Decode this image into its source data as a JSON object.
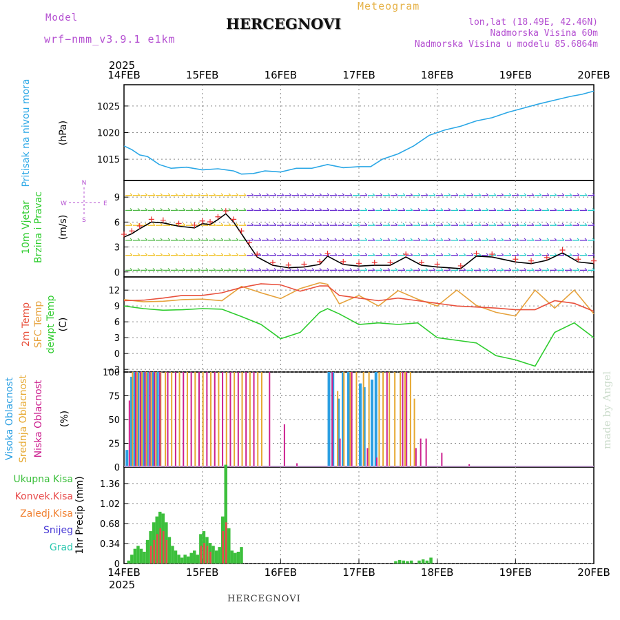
{
  "header": {
    "model_label": "Model",
    "model_name": "wrf−nmm_v3.9.1  e1km",
    "title": "HERCEGNOVI",
    "meteogram_label": "Meteogram",
    "lonlat": "lon,lat (18.49E, 42.46N)",
    "elev": "Nadmorska Visina 60m",
    "elev_model": "Nadmorska Visina u modelu 85.6864m",
    "credit": "made by Angel",
    "footer_title": "HERCEGNOVI"
  },
  "colors": {
    "pressure": "#2aa7e6",
    "temp2m": "#e8503c",
    "sfc": "#e6a23c",
    "dew": "#2ecc2e",
    "high_cloud": "#2b9fe2",
    "mid_cloud": "#e6a830",
    "low_cloud": "#cc1f8e",
    "total_precip": "#3cbf3c",
    "conv_precip": "#e84a4a",
    "frozen": "#f08030",
    "snow": "#4a3cd6",
    "hail": "#2ec8b0",
    "model_purple": "#b44fd1"
  },
  "time_axis": {
    "year": "2025",
    "labels": [
      "14FEB",
      "15FEB",
      "16FEB",
      "17FEB",
      "18FEB",
      "19FEB",
      "20FEB"
    ]
  },
  "panels": {
    "pressure": {
      "label": "Pritisak na nivou mora",
      "unit": "(hPa)"
    },
    "wind": {
      "label1": "10m Vjetar",
      "label2": "Brzina i Pravac",
      "unit": "(m/s)",
      "compass_n": "N",
      "compass_s": "S",
      "compass_w": "W",
      "compass_e": "E"
    },
    "temp": {
      "label1": "2m Temp",
      "label2": "SFC Temp",
      "label3": "dewpt Temp",
      "unit": "(C)"
    },
    "cloud": {
      "label1": "Visoka Oblacnost",
      "label2": "Srednja Oblacnost",
      "label3": "Niska Oblacnost",
      "unit": "(%)"
    },
    "precip": {
      "unit": "1hr Precip (mm)",
      "legend": [
        "Ukupna Kisa",
        "Konvek.Kisa",
        "Zaledj.Kisa",
        "Snijeg",
        "Grad"
      ]
    }
  },
  "chart_data": [
    {
      "type": "line",
      "x_days": [
        0,
        0.1,
        0.2,
        0.3,
        0.45,
        0.6,
        0.8,
        1.0,
        1.2,
        1.4,
        1.5,
        1.65,
        1.8,
        2.0,
        2.2,
        2.4,
        2.6,
        2.8,
        3.0,
        3.15,
        3.3,
        3.5,
        3.7,
        3.9,
        4.1,
        4.3,
        4.5,
        4.7,
        4.9,
        5.1,
        5.3,
        5.5,
        5.7,
        5.85,
        6.0
      ],
      "series": [
        {
          "values": [
            1017.5,
            1016.8,
            1015.8,
            1015.5,
            1014.0,
            1013.3,
            1013.5,
            1013.0,
            1013.2,
            1012.8,
            1012.2,
            1012.3,
            1012.8,
            1012.6,
            1013.3,
            1013.3,
            1014.0,
            1013.4,
            1013.6,
            1013.6,
            1015.0,
            1016.0,
            1017.5,
            1019.5,
            1020.5,
            1021.2,
            1022.2,
            1022.8,
            1023.8,
            1024.6,
            1025.4,
            1026.1,
            1026.8,
            1027.2,
            1027.8
          ]
        }
      ],
      "ylim": [
        1011,
        1029
      ],
      "yticks": [
        1015,
        1020,
        1025
      ]
    },
    {
      "type": "line",
      "x_days": [
        0,
        0.1,
        0.2,
        0.35,
        0.5,
        0.7,
        0.9,
        1.0,
        1.1,
        1.2,
        1.3,
        1.4,
        1.5,
        1.6,
        1.7,
        1.9,
        2.1,
        2.3,
        2.5,
        2.6,
        2.8,
        3.0,
        3.2,
        3.4,
        3.6,
        3.8,
        4.0,
        4.3,
        4.5,
        4.7,
        5.0,
        5.2,
        5.4,
        5.6,
        5.8,
        6.0
      ],
      "series": [
        {
          "values": [
            4.2,
            4.6,
            5.2,
            6.0,
            5.9,
            5.5,
            5.3,
            5.8,
            5.7,
            6.3,
            7.0,
            6.0,
            4.6,
            3.2,
            1.8,
            0.8,
            0.5,
            0.6,
            0.9,
            1.9,
            0.9,
            0.7,
            0.8,
            0.8,
            1.8,
            0.8,
            0.6,
            0.4,
            1.9,
            1.8,
            1.2,
            1.0,
            1.4,
            2.3,
            1.2,
            1.0
          ]
        }
      ],
      "ylim": [
        -0.6,
        11
      ],
      "yticks": [
        0,
        3,
        6,
        9
      ],
      "barb_rows": [
        0,
        1,
        2,
        3,
        4,
        5
      ]
    },
    {
      "type": "line",
      "x_days": [
        0,
        0.25,
        0.5,
        0.75,
        1.0,
        1.25,
        1.5,
        1.75,
        2.0,
        2.25,
        2.5,
        2.6,
        2.75,
        3.0,
        3.25,
        3.5,
        3.75,
        4.0,
        4.25,
        4.5,
        4.75,
        5.0,
        5.25,
        5.5,
        5.75,
        6.0
      ],
      "series": [
        {
          "name": "2m Temp",
          "values": [
            10.0,
            10.1,
            10.5,
            11.0,
            11.0,
            11.5,
            12.5,
            13.2,
            13.0,
            11.8,
            12.8,
            12.8,
            11.0,
            10.5,
            10.0,
            10.5,
            10.0,
            9.5,
            9.0,
            8.8,
            8.6,
            8.3,
            8.3,
            10.0,
            9.5,
            8.0
          ]
        },
        {
          "name": "SFC Temp",
          "values": [
            10.2,
            9.8,
            9.9,
            10.2,
            10.3,
            10.0,
            12.7,
            11.5,
            10.4,
            12.3,
            13.4,
            13.1,
            9.4,
            11.0,
            9.0,
            11.9,
            10.3,
            9.0,
            12.0,
            9.1,
            7.8,
            7.1,
            12.0,
            8.6,
            12.0,
            7.5
          ]
        },
        {
          "name": "dewpt Temp",
          "values": [
            9.0,
            8.5,
            8.2,
            8.3,
            8.5,
            8.4,
            7.0,
            5.5,
            2.8,
            4.0,
            7.8,
            8.5,
            7.5,
            5.5,
            5.8,
            5.5,
            5.8,
            3.0,
            2.5,
            2.0,
            -0.4,
            -1.2,
            -2.4,
            4.0,
            5.8,
            3.0
          ]
        }
      ],
      "ylim": [
        -3.5,
        14.5
      ],
      "yticks": [
        -3,
        0,
        3,
        6,
        9,
        12
      ]
    },
    {
      "type": "bar",
      "series": [
        {
          "name": "Visoka Oblacnost",
          "x_days": [
            0.02,
            0.08,
            0.12,
            0.16,
            0.2,
            0.24,
            0.28,
            0.32,
            0.36,
            0.4,
            0.44,
            2.6,
            2.65,
            2.72,
            2.78,
            2.85,
            3.0,
            3.05,
            3.15,
            3.2
          ],
          "values": [
            18,
            95,
            100,
            100,
            100,
            100,
            100,
            100,
            100,
            100,
            100,
            100,
            100,
            72,
            100,
            100,
            88,
            84,
            92,
            100
          ]
        },
        {
          "name": "Srednja Oblacnost",
          "x_days": [
            0.1,
            0.16,
            0.22,
            0.28,
            0.34,
            0.4,
            0.46,
            0.52,
            0.6,
            0.7,
            0.8,
            0.9,
            1.0,
            1.1,
            1.2,
            1.3,
            1.4,
            1.5,
            1.6,
            1.7,
            1.75,
            2.72,
            2.8,
            2.88,
            2.96,
            3.05,
            3.12,
            3.25,
            3.3,
            3.38,
            3.45,
            3.52,
            3.58,
            3.65,
            3.7
          ],
          "values": [
            100,
            100,
            100,
            100,
            100,
            100,
            100,
            100,
            100,
            100,
            100,
            100,
            100,
            100,
            100,
            100,
            100,
            100,
            100,
            100,
            100,
            80,
            100,
            100,
            100,
            100,
            100,
            100,
            100,
            100,
            100,
            100,
            100,
            100,
            72
          ]
        },
        {
          "name": "Niska Oblacnost",
          "x_days": [
            0.06,
            0.14,
            0.2,
            0.26,
            0.32,
            0.38,
            0.45,
            0.55,
            0.65,
            0.75,
            0.85,
            0.95,
            1.05,
            1.15,
            1.25,
            1.35,
            1.45,
            1.55,
            1.65,
            1.85,
            2.04,
            2.2,
            2.65,
            2.75,
            2.9,
            3.1,
            3.22,
            3.35,
            3.55,
            3.6,
            3.72,
            3.78,
            3.85,
            4.05,
            4.4
          ],
          "values": [
            70,
            100,
            100,
            100,
            100,
            100,
            100,
            100,
            100,
            100,
            100,
            100,
            100,
            100,
            100,
            100,
            100,
            100,
            100,
            100,
            45,
            4,
            100,
            30,
            100,
            20,
            10,
            100,
            100,
            100,
            20,
            30,
            30,
            15,
            3
          ]
        }
      ],
      "ylim": [
        0,
        100
      ],
      "yticks": [
        0,
        25,
        50,
        75,
        100
      ]
    },
    {
      "type": "bar",
      "series": [
        {
          "name": "Ukupna Kisa",
          "x_days": [
            0.04,
            0.08,
            0.12,
            0.16,
            0.2,
            0.24,
            0.28,
            0.32,
            0.36,
            0.4,
            0.44,
            0.48,
            0.52,
            0.56,
            0.6,
            0.64,
            0.68,
            0.72,
            0.76,
            0.8,
            0.84,
            0.88,
            0.92,
            0.96,
            1.0,
            1.04,
            1.08,
            1.12,
            1.16,
            1.2,
            1.24,
            1.28,
            1.32,
            1.36,
            1.4,
            1.44,
            1.48,
            3.45,
            3.5,
            3.55,
            3.6,
            3.65,
            3.75,
            3.8,
            3.85,
            3.9
          ],
          "values": [
            0.05,
            0.15,
            0.25,
            0.3,
            0.25,
            0.2,
            0.4,
            0.55,
            0.7,
            0.8,
            0.88,
            0.85,
            0.7,
            0.45,
            0.3,
            0.22,
            0.15,
            0.1,
            0.15,
            0.12,
            0.18,
            0.22,
            0.15,
            0.5,
            0.55,
            0.45,
            0.35,
            0.3,
            0.22,
            0.28,
            0.8,
            1.68,
            0.6,
            0.22,
            0.18,
            0.2,
            0.28,
            0.04,
            0.06,
            0.05,
            0.04,
            0.05,
            0.05,
            0.07,
            0.05,
            0.1
          ]
        },
        {
          "name": "Konvek.Kisa",
          "x_days": [
            0.32,
            0.36,
            0.4,
            0.44,
            0.48,
            0.52,
            0.96,
            1.0,
            1.04,
            1.08,
            1.24,
            1.28
          ],
          "values": [
            0.3,
            0.4,
            0.5,
            0.6,
            0.55,
            0.4,
            0.3,
            0.35,
            0.3,
            0.2,
            0.55,
            0.7
          ]
        }
      ],
      "ylim": [
        0,
        1.64
      ],
      "yticks": [
        0,
        0.34,
        0.68,
        1.02,
        1.36
      ]
    }
  ]
}
